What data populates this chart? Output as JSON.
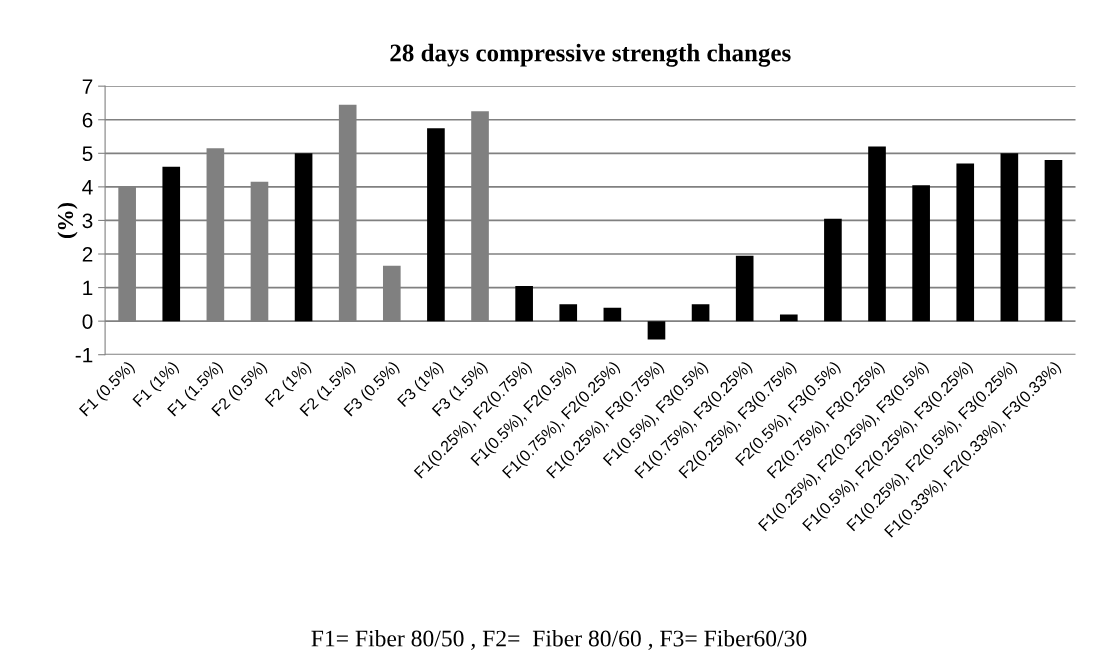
{
  "chart_data": {
    "type": "bar",
    "title": "28 days compressive strength changes",
    "ylabel": "(%)",
    "categories": [
      "F1 (0.5%)",
      "F1 (1%)",
      "F1 (1.5%)",
      "F2 (0.5%)",
      "F2 (1%)",
      "F2 (1.5%)",
      "F3 (0.5%)",
      "F3 (1%)",
      "F3 (1.5%)",
      "F1(0.25%), F2(0.75%)",
      "F1(0.5%), F2(0.5%)",
      "F1(0.75%), F2(0.25%)",
      "F1(0.25%), F3(0.75%)",
      "F1(0.5%), F3(0.5%)",
      "F1(0.75%), F3(0.25%)",
      "F2(0.25%), F3(0.75%)",
      "F2(0.5%), F3(0.5%)",
      "F2(0.75%), F3(0.25%)",
      "F1(0.25%), F2(0.25%), F3(0.5%)",
      "F1(0.5%), F2(0.25%), F3(0.25%)",
      "F1(0.25%), F2(0.5%), F3(0.25%)",
      "F1(0.33%), F2(0.33%), F3(0.33%)"
    ],
    "values": [
      4.0,
      4.6,
      5.15,
      4.15,
      5.0,
      6.45,
      1.65,
      5.75,
      6.25,
      1.05,
      0.5,
      0.4,
      -0.55,
      0.5,
      1.95,
      0.2,
      3.05,
      5.2,
      4.05,
      4.7,
      5.0,
      4.8
    ],
    "colors": [
      "#808080",
      "#000000",
      "#808080",
      "#808080",
      "#000000",
      "#808080",
      "#808080",
      "#000000",
      "#808080",
      "#000000",
      "#000000",
      "#000000",
      "#000000",
      "#000000",
      "#000000",
      "#000000",
      "#000000",
      "#000000",
      "#000000",
      "#000000",
      "#000000",
      "#000000"
    ],
    "ylim": [
      -1,
      7
    ],
    "yticks": [
      -1,
      0,
      1,
      2,
      3,
      4,
      5,
      6,
      7
    ],
    "grid": "y",
    "legend": false,
    "annotations": [
      "F1= Fiber 80/50 , F2=  Fiber 80/60 , F3= Fiber60/30"
    ]
  }
}
